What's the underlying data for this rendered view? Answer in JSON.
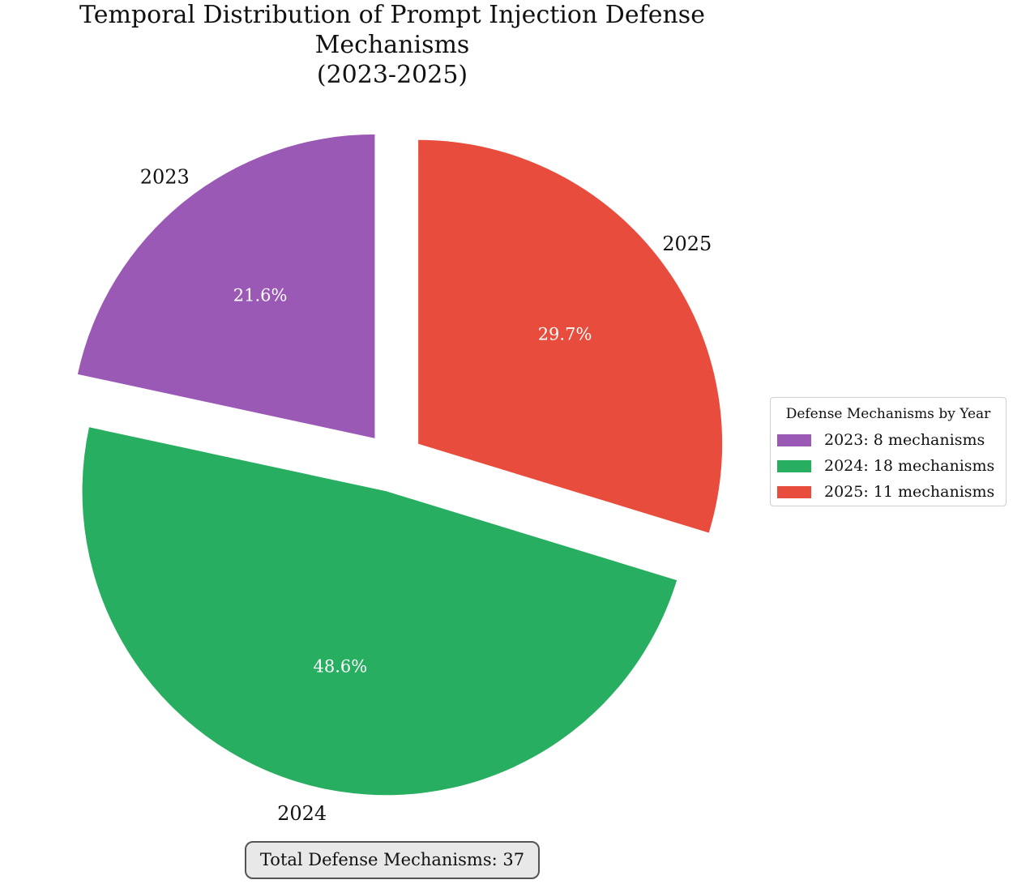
{
  "chart_data": {
    "type": "pie",
    "title": "Temporal Distribution of Prompt Injection Defense Mechanisms",
    "subtitle": "(2023-2025)",
    "categories": [
      "2023",
      "2024",
      "2025"
    ],
    "values": [
      8,
      18,
      11
    ],
    "percent_labels": [
      "21.6%",
      "48.6%",
      "29.7%"
    ],
    "colors": [
      "#9b59b6",
      "#27ae60",
      "#e74c3c"
    ],
    "exploded": true,
    "start_angle_deg": 90,
    "direction": "counterclockwise",
    "legend": {
      "title": "Defense Mechanisms by Year",
      "placement": "center-right",
      "entries": [
        "2023: 8 mechanisms",
        "2024: 18 mechanisms",
        "2025: 11 mechanisms"
      ]
    },
    "annotation": "Total Defense Mechanisms: 37"
  }
}
